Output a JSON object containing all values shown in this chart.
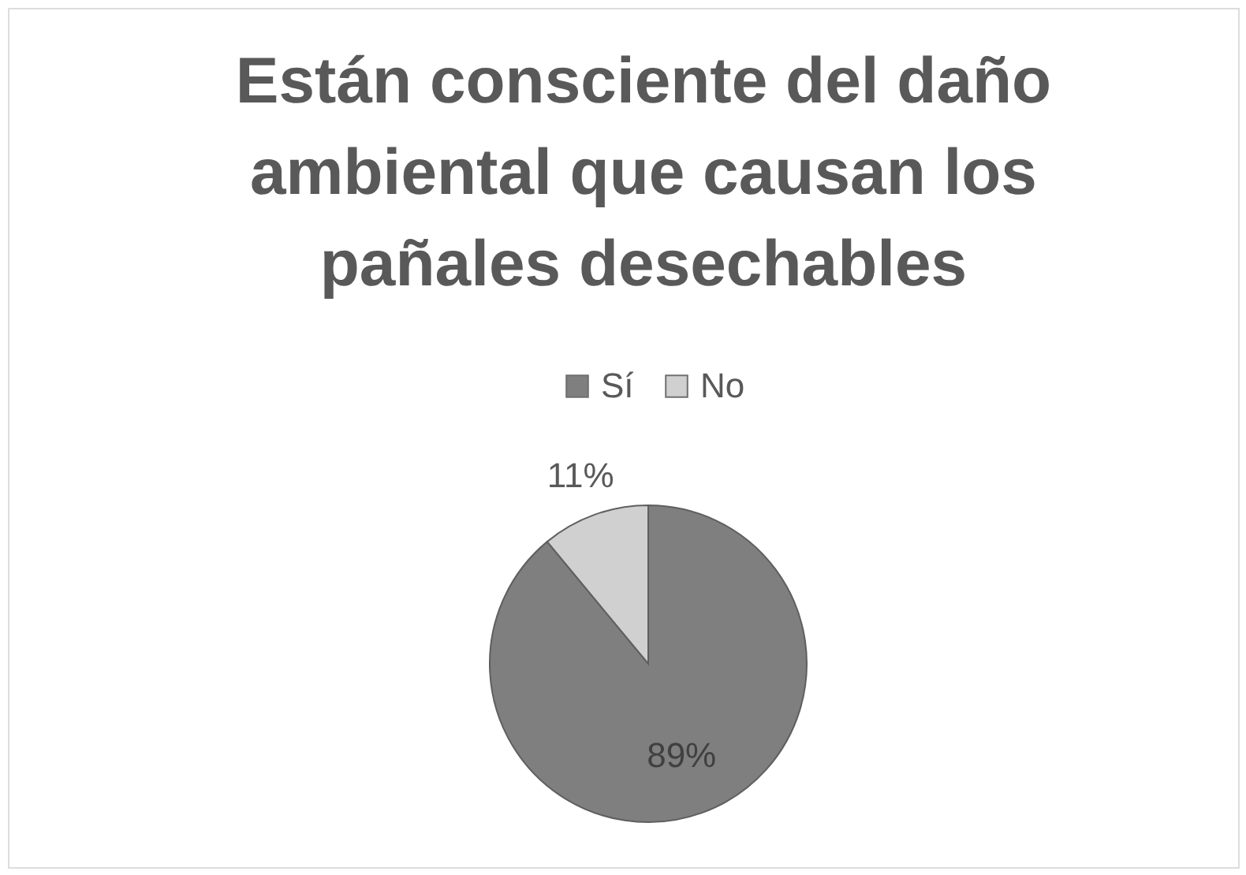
{
  "chart_data": {
    "type": "pie",
    "title": "Están consciente del daño ambiental que causan los pañales desechables",
    "categories": [
      "Sí",
      "No"
    ],
    "values": [
      89,
      11
    ],
    "colors": [
      "#7f7f7f",
      "#d0d0d0"
    ],
    "value_labels": [
      "89%",
      "11%"
    ],
    "legend": "top"
  }
}
